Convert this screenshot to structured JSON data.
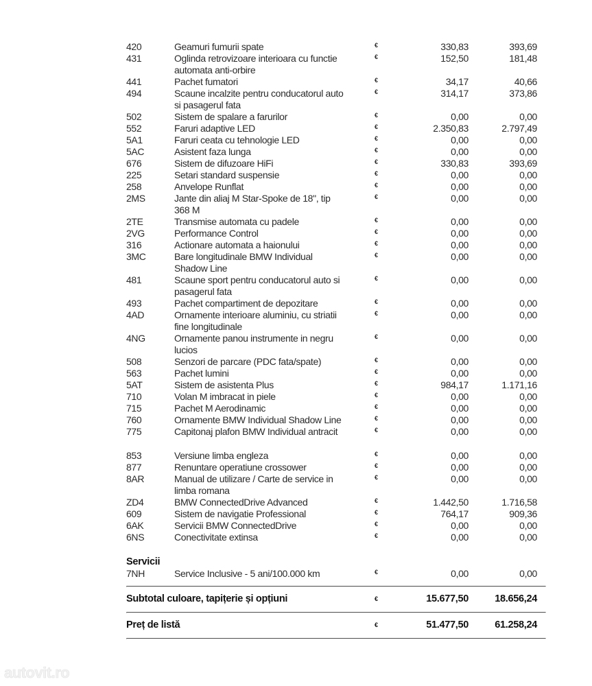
{
  "currency_symbol": "€",
  "options_a": [
    {
      "code": "420",
      "desc": "Geamuri fumurii spate",
      "net": "330,83",
      "gross": "393,69"
    },
    {
      "code": "431",
      "desc": "Oglinda retrovizoare interioara cu functie\nautomata anti-orbire",
      "net": "152,50",
      "gross": "181,48"
    },
    {
      "code": "441",
      "desc": "Pachet fumatori",
      "net": "34,17",
      "gross": "40,66"
    },
    {
      "code": "494",
      "desc": "Scaune incalzite pentru conducatorul auto\nsi pasagerul fata",
      "net": "314,17",
      "gross": "373,86"
    },
    {
      "code": "502",
      "desc": "Sistem de spalare a farurilor",
      "net": "0,00",
      "gross": "0,00"
    },
    {
      "code": "552",
      "desc": "Faruri adaptive LED",
      "net": "2.350,83",
      "gross": "2.797,49"
    },
    {
      "code": "5A1",
      "desc": "Faruri ceata cu tehnologie LED",
      "net": "0,00",
      "gross": "0,00"
    },
    {
      "code": "5AC",
      "desc": "Asistent faza lunga",
      "net": "0,00",
      "gross": "0,00"
    },
    {
      "code": "676",
      "desc": "Sistem de difuzoare HiFi",
      "net": "330,83",
      "gross": "393,69"
    },
    {
      "code": "225",
      "desc": "Setari standard suspensie",
      "net": "0,00",
      "gross": "0,00"
    },
    {
      "code": "258",
      "desc": "Anvelope Runflat",
      "net": "0,00",
      "gross": "0,00"
    },
    {
      "code": "2MS",
      "desc": "Jante din aliaj M Star-Spoke de 18\", tip\n368 M",
      "net": "0,00",
      "gross": "0,00"
    },
    {
      "code": "2TE",
      "desc": "Transmise automata cu padele",
      "net": "0,00",
      "gross": "0,00"
    },
    {
      "code": "2VG",
      "desc": "Performance Control",
      "net": "0,00",
      "gross": "0,00"
    },
    {
      "code": "316",
      "desc": "Actionare automata a haionului",
      "net": "0,00",
      "gross": "0,00"
    },
    {
      "code": "3MC",
      "desc": "Bare longitudinale BMW Individual\nShadow Line",
      "net": "0,00",
      "gross": "0,00"
    },
    {
      "code": "481",
      "desc": "Scaune sport pentru conducatorul auto si\npasagerul fata",
      "net": "0,00",
      "gross": "0,00"
    },
    {
      "code": "493",
      "desc": "Pachet compartiment de depozitare",
      "net": "0,00",
      "gross": "0,00"
    },
    {
      "code": "4AD",
      "desc": "Ornamente interioare aluminiu, cu striatii\nfine longitudinale",
      "net": "0,00",
      "gross": "0,00"
    },
    {
      "code": "4NG",
      "desc": "Ornamente panou instrumente in negru\nlucios",
      "net": "0,00",
      "gross": "0,00"
    },
    {
      "code": "508",
      "desc": "Senzori de parcare (PDC fata/spate)",
      "net": "0,00",
      "gross": "0,00"
    },
    {
      "code": "563",
      "desc": "Pachet lumini",
      "net": "0,00",
      "gross": "0,00"
    },
    {
      "code": "5AT",
      "desc": "Sistem de asistenta Plus",
      "net": "984,17",
      "gross": "1.171,16"
    },
    {
      "code": "710",
      "desc": "Volan M imbracat in piele",
      "net": "0,00",
      "gross": "0,00"
    },
    {
      "code": "715",
      "desc": "Pachet M Aerodinamic",
      "net": "0,00",
      "gross": "0,00"
    },
    {
      "code": "760",
      "desc": "Ornamente BMW Individual Shadow Line",
      "net": "0,00",
      "gross": "0,00"
    },
    {
      "code": "775",
      "desc": "Capitonaj plafon BMW Individual antracit",
      "net": "0,00",
      "gross": "0,00"
    }
  ],
  "options_b": [
    {
      "code": "853",
      "desc": "Versiune limba engleza",
      "net": "0,00",
      "gross": "0,00"
    },
    {
      "code": "877",
      "desc": "Renuntare operatiune crossower",
      "net": "0,00",
      "gross": "0,00"
    },
    {
      "code": "8AR",
      "desc": "Manual de utilizare / Carte de service in\nlimba romana",
      "net": "0,00",
      "gross": "0,00"
    },
    {
      "code": "ZD4",
      "desc": "BMW ConnectedDrive Advanced",
      "net": "1.442,50",
      "gross": "1.716,58"
    },
    {
      "code": "609",
      "desc": "Sistem de navigatie Professional",
      "net": "764,17",
      "gross": "909,36"
    },
    {
      "code": "6AK",
      "desc": "Servicii BMW ConnectedDrive",
      "net": "0,00",
      "gross": "0,00"
    },
    {
      "code": "6NS",
      "desc": "Conectivitate extinsa",
      "net": "0,00",
      "gross": "0,00"
    }
  ],
  "services": {
    "title": "Servicii",
    "items": [
      {
        "code": "7NH",
        "desc": "Service Inclusive - 5 ani/100.000 km",
        "net": "0,00",
        "gross": "0,00"
      }
    ]
  },
  "totals": [
    {
      "label": "Subtotal culoare, tapițerie și opțiuni",
      "net": "15.677,50",
      "gross": "18.656,24"
    },
    {
      "label": "Preț de listă",
      "net": "51.477,50",
      "gross": "61.258,24"
    }
  ],
  "watermark": "autovit.ro"
}
